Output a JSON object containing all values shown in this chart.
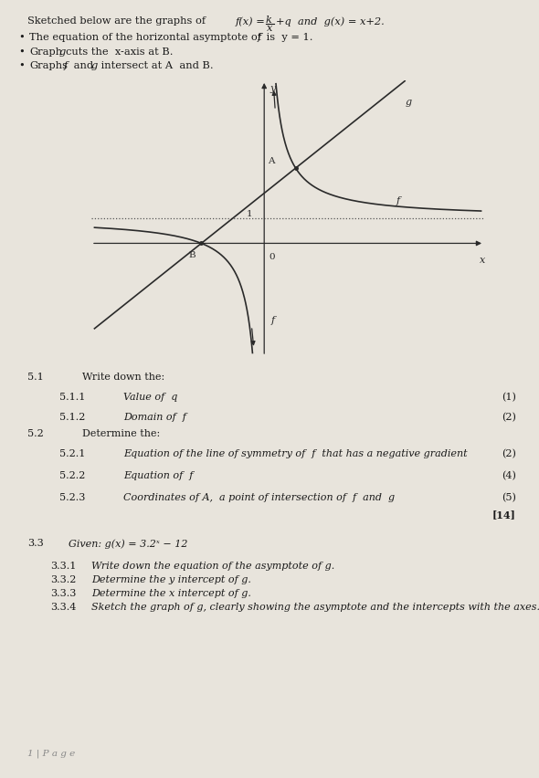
{
  "bg_color": "#ccc8c0",
  "paper_color": "#e8e4dc",
  "text_color": "#1a1a1a",
  "line_color": "#2a2a2a",
  "asymptote_color": "#555555",
  "graph_xlim": [
    -5.5,
    7.0
  ],
  "graph_ylim": [
    -4.5,
    6.5
  ],
  "k_val": 2.0,
  "q_val": 1.0,
  "header": "Sketched below are the graphs of",
  "header_eq": "f(x) =",
  "header_k": "k",
  "header_x": "x",
  "header_rest": "+q  and  g(x) = x+2.",
  "bullet1": "The equation of the horizontal asymptote of",
  "bullet1b": "f",
  "bullet1c": " is  y = 1.",
  "bullet2a": "Graph",
  "bullet2b": "g",
  "bullet2c": " cuts the  x-axis at B.",
  "bullet3a": "Graphs",
  "bullet3b": "f",
  "bullet3c": " and",
  "bullet3d": "g",
  "bullet3e": " intersect at A  and B.",
  "s51": "5.1",
  "s51t": "Write down the:",
  "s511": "5.1.1",
  "s511t": "Value of  q",
  "s511m": "(1)",
  "s512": "5.1.2",
  "s512t": "Domain of  f",
  "s512m": "(2)",
  "s52": "5.2",
  "s52t": "Determine the:",
  "s521": "5.2.1",
  "s521t": "Equation of the line of symmetry of  f  that has a negative gradient",
  "s521m": "(2)",
  "s522": "5.2.2",
  "s522t": "Equation of  f",
  "s522m": "(4)",
  "s523": "5.2.3",
  "s523t": "Coordinates of A,  a point of intersection of  f  and  g",
  "s523m": "(5)",
  "s523total": "[14]",
  "s33": "3.3",
  "s33t": "Given: g(x) = 3.2ˣ − 12",
  "s331": "3.3.1",
  "s331t": "Write down the equation of the asymptote of g.",
  "s332": "3.3.2",
  "s332t": "Determine the y intercept of g.",
  "s333": "3.3.3",
  "s333t": "Determine the x intercept of g.",
  "s334": "3.3.4",
  "s334t": "Sketch the graph of g, clearly showing the asymptote and the intercepts with the axes.",
  "footer": "1 | P a g e"
}
